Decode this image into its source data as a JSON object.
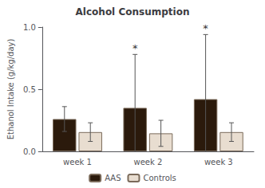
{
  "chart_data": {
    "type": "bar",
    "title": "Alcohol Consumption",
    "ylabel": "Ethanol Intake (g/kg/day)",
    "categories": [
      "week 1",
      "week 2",
      "week 3"
    ],
    "series": [
      {
        "name": "AAS",
        "color": "#2b1a0c",
        "values": [
          0.26,
          0.35,
          0.42
        ],
        "errors": [
          0.1,
          0.43,
          0.52
        ]
      },
      {
        "name": "Controls",
        "color": "#e8ddd0",
        "values": [
          0.155,
          0.145,
          0.155
        ],
        "errors": [
          0.075,
          0.105,
          0.075
        ]
      }
    ],
    "ylim": [
      0.0,
      1.0
    ],
    "yticks": [
      {
        "value": 0.0,
        "label": "0.0"
      },
      0.5,
      {
        "value": 1.0,
        "label": "1.0"
      }
    ],
    "annotations": [
      {
        "text": "*",
        "series": "AAS",
        "category": "week 2"
      },
      {
        "text": "*",
        "series": "AAS",
        "category": "week 3"
      }
    ],
    "legend": "bottom",
    "grid": false
  }
}
